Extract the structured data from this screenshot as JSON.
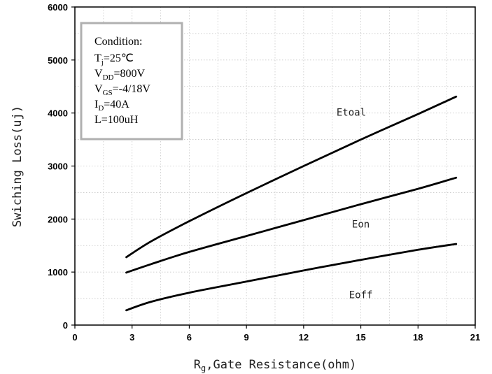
{
  "chart_data": {
    "type": "line",
    "xlabel_main": "R",
    "xlabel_sub": "g",
    "xlabel_rest": ",Gate Resistance(ohm)",
    "ylabel": "Swiching Loss(uj)",
    "xlim": [
      0,
      21
    ],
    "ylim": [
      0,
      6000
    ],
    "xticks": [
      0,
      3,
      6,
      9,
      12,
      15,
      18,
      21
    ],
    "yticks": [
      0,
      1000,
      2000,
      3000,
      4000,
      5000,
      6000
    ],
    "grid": true,
    "series": [
      {
        "name": "Etoal",
        "x": [
          2.7,
          4,
          6,
          9,
          12,
          15,
          18,
          20
        ],
        "y": [
          1280,
          1580,
          1960,
          2490,
          3000,
          3500,
          3980,
          4310
        ]
      },
      {
        "name": "Eon",
        "x": [
          2.7,
          4,
          6,
          9,
          12,
          15,
          18,
          20
        ],
        "y": [
          990,
          1150,
          1380,
          1680,
          1980,
          2280,
          2570,
          2780
        ]
      },
      {
        "name": "Eoff",
        "x": [
          2.7,
          4,
          6,
          9,
          12,
          15,
          18,
          20
        ],
        "y": [
          280,
          440,
          610,
          820,
          1030,
          1230,
          1420,
          1530
        ]
      }
    ],
    "series_label_positions": [
      {
        "name": "Etoal",
        "x": 14.5,
        "y": 3950
      },
      {
        "name": "Eon",
        "x": 15,
        "y": 1840
      },
      {
        "name": "Eoff",
        "x": 15,
        "y": 510
      }
    ]
  },
  "condition_box": {
    "heading": "Condition:",
    "lines": [
      {
        "main": "T",
        "sub": "j",
        "rest": "=25℃"
      },
      {
        "main": "V",
        "sub": "DD",
        "rest": "=800V"
      },
      {
        "main": "V",
        "sub": "GS",
        "rest": "=-4/18V"
      },
      {
        "main": "I",
        "sub": "D",
        "rest": "=40A"
      },
      {
        "main": "L=100uH",
        "sub": "",
        "rest": ""
      }
    ]
  }
}
